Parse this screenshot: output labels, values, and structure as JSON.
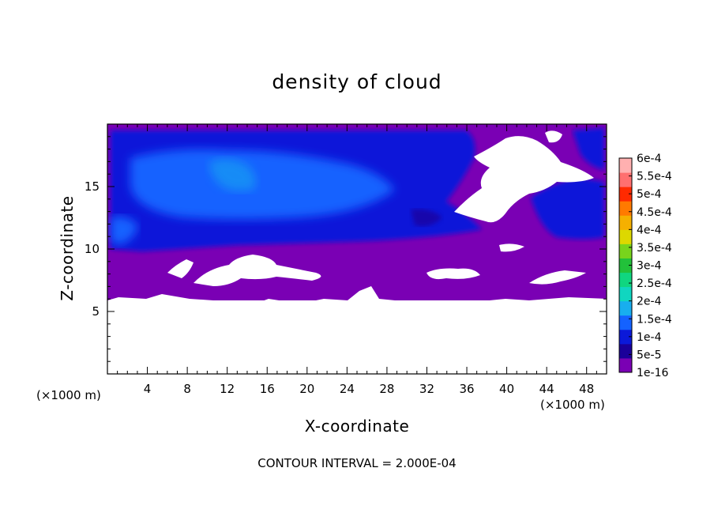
{
  "chart_data": {
    "type": "heatmap",
    "title": "density of cloud",
    "xlabel": "X-coordinate",
    "ylabel": "Z-coordinate",
    "x_unit": "(×1000 m)",
    "y_unit": "(×1000 m)",
    "xlim": [
      0,
      50
    ],
    "ylim": [
      0,
      20
    ],
    "x_ticks": [
      4,
      8,
      12,
      16,
      20,
      24,
      28,
      32,
      36,
      40,
      44,
      48
    ],
    "y_ticks": [
      5,
      10,
      15
    ],
    "footer": "CONTOUR INTERVAL = 2.000E-04",
    "legend": {
      "levels": [
        "1e-16",
        "5e-5",
        "1e-4",
        "1.5e-4",
        "2e-4",
        "2.5e-4",
        "3e-4",
        "3.5e-4",
        "4e-4",
        "4.5e-4",
        "5e-4",
        "5.5e-4",
        "6e-4"
      ],
      "colors": [
        "#7a00b4",
        "#1a009a",
        "#0b19d9",
        "#1462ff",
        "#18aeef",
        "#10d6c0",
        "#10d680",
        "#22c13a",
        "#78d41c",
        "#ddd800",
        "#f5b000",
        "#ff7a00",
        "#ff2a00",
        "#ff6f6f",
        "#ffb0b0"
      ]
    }
  }
}
